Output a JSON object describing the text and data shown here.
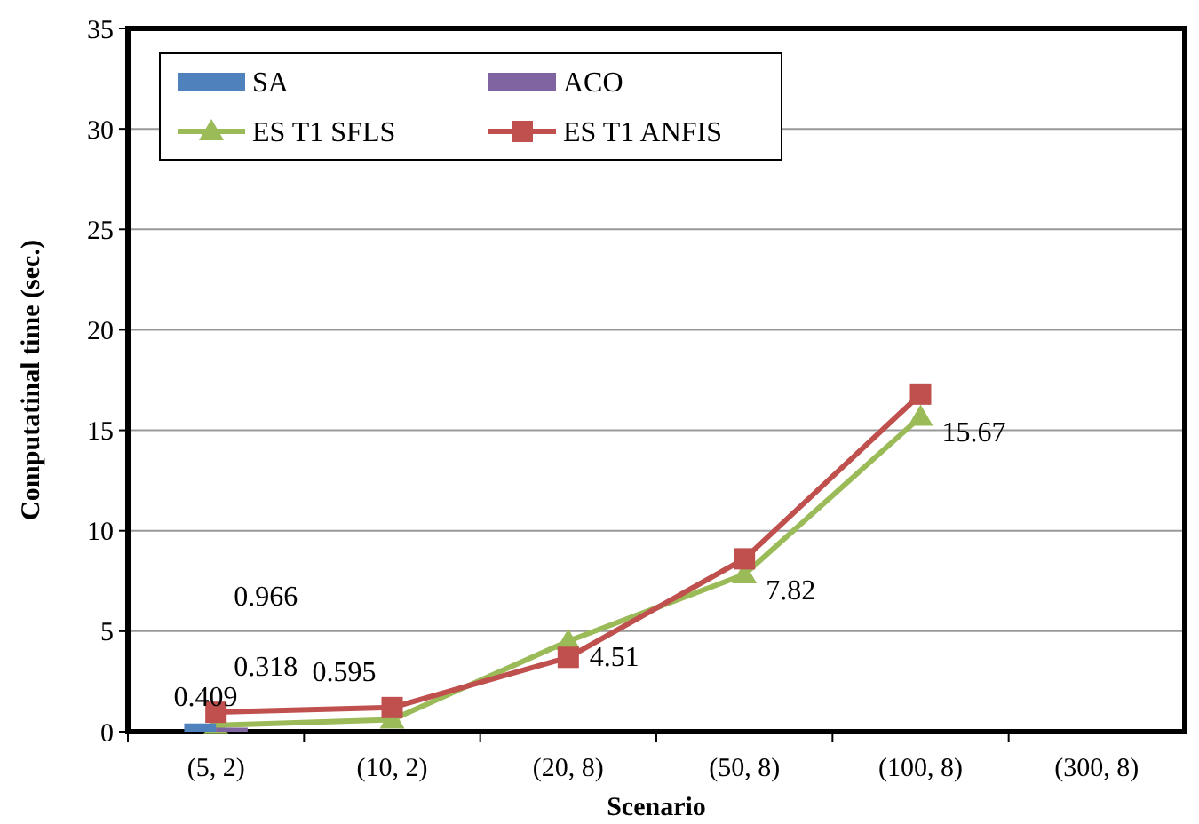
{
  "chart_data": {
    "type": "bar",
    "xlabel": "Scenario",
    "ylabel": "Computatinal time (sec.)",
    "categories": [
      "(5, 2)",
      "(10, 2)",
      "(20, 8)",
      "(50, 8)",
      "(100, 8)",
      "(300, 8)"
    ],
    "series": [
      {
        "name": "SA",
        "color": "#4f81bd",
        "values": [
          0.409,
          null,
          null,
          null,
          null,
          null
        ],
        "value_labels": [
          "0.409",
          null,
          null,
          null,
          null,
          null
        ]
      },
      {
        "name": "ACO",
        "color": "#8064a2",
        "values": [
          0.2,
          null,
          null,
          null,
          null,
          null
        ]
      },
      {
        "name": "ES T1 SFLS",
        "type": "line",
        "marker": "triangle",
        "color": "#9bbb59",
        "values": [
          0.318,
          0.595,
          4.51,
          7.82,
          15.67,
          null
        ],
        "value_labels": [
          "0.318",
          "0.595",
          "4.51",
          "7.82",
          "15.67",
          null
        ]
      },
      {
        "name": "ES T1 ANFIS",
        "type": "line",
        "marker": "square",
        "color": "#c0504d",
        "values": [
          0.966,
          1.2,
          3.7,
          8.6,
          16.8,
          null
        ],
        "value_labels": [
          "0.966",
          null,
          null,
          null,
          null,
          null
        ]
      }
    ],
    "ylim": [
      0,
      35
    ],
    "yticks": [
      0,
      5,
      10,
      15,
      20,
      25,
      30,
      35
    ],
    "grid": "y",
    "legend": "top left"
  }
}
